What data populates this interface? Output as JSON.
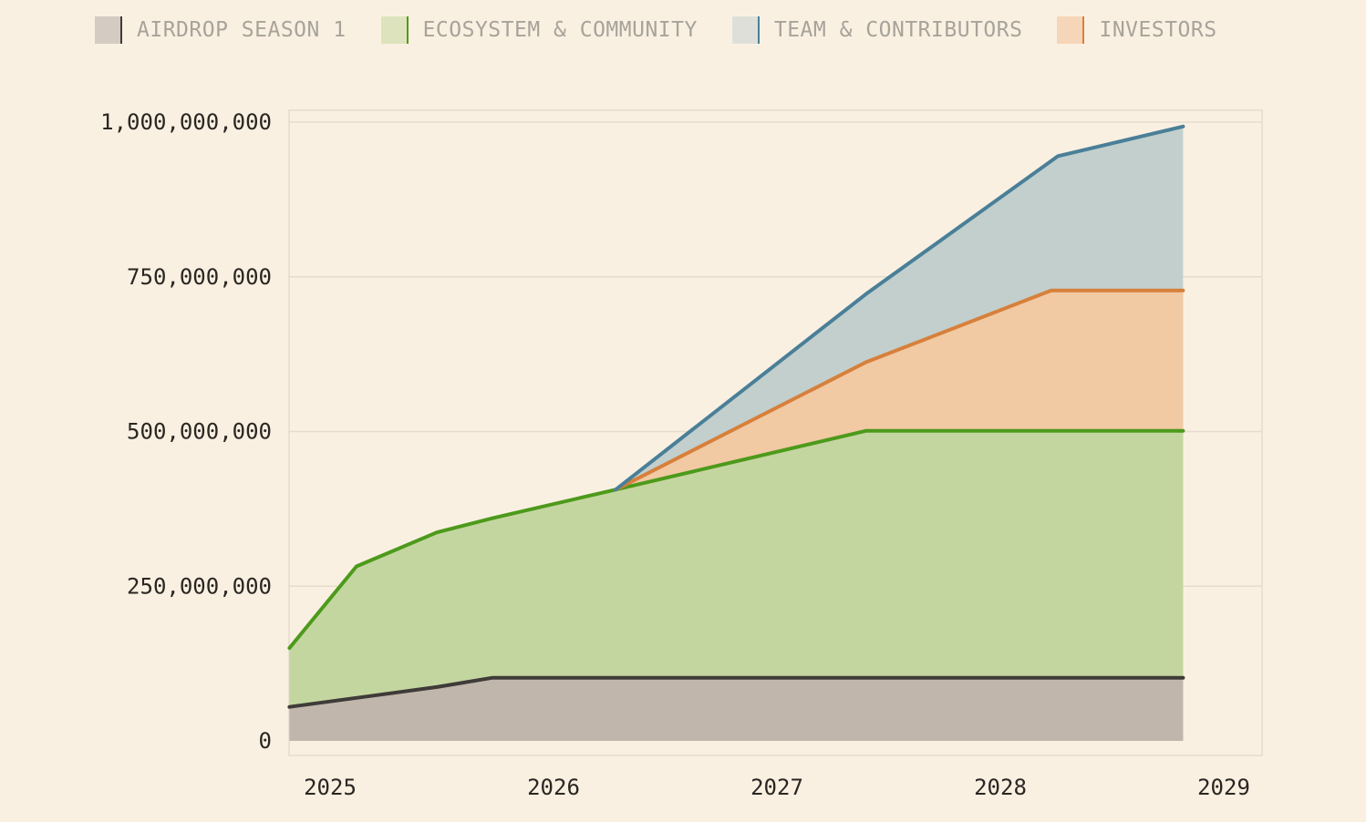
{
  "chart_data": {
    "type": "area",
    "stacked": true,
    "title": "",
    "xlabel": "",
    "ylabel": "",
    "xlim": [
      2025,
      2029
    ],
    "ylim": [
      0,
      1000000000
    ],
    "x_ticks": [
      2025,
      2026,
      2027,
      2028,
      2029
    ],
    "x_tick_labels": [
      "2025",
      "2026",
      "2027",
      "2028",
      "2029"
    ],
    "y_ticks": [
      0,
      250000000,
      500000000,
      750000000,
      1000000000
    ],
    "y_tick_labels": [
      "0",
      "250,000,000",
      "500,000,000",
      "750,000,000",
      "1,000,000,000"
    ],
    "grid": true,
    "legend_position": "top",
    "series": [
      {
        "name": "AIRDROP SEASON 1",
        "key": "airdrop",
        "line_color": "#3f3b38",
        "fill_color": "#c0b6ac",
        "swatch_color": "#d4cbc2",
        "points": [
          [
            2024.92,
            55000000
          ],
          [
            2025.25,
            71000000
          ],
          [
            2025.58,
            87000000
          ],
          [
            2025.83,
            102000000
          ],
          [
            2026.5,
            102000000
          ],
          [
            2027.5,
            102000000
          ],
          [
            2028.33,
            102000000
          ],
          [
            2028.92,
            102000000
          ]
        ]
      },
      {
        "name": "ECOSYSTEM & COMMUNITY",
        "key": "ecosystem",
        "line_color": "#4d9a1b",
        "fill_color": "#c4d6a0",
        "swatch_color": "#dde3bc",
        "points": [
          [
            2024.92,
            150000000
          ],
          [
            2025.22,
            282000000
          ],
          [
            2025.58,
            337000000
          ],
          [
            2025.83,
            360000000
          ],
          [
            2026.38,
            406000000
          ],
          [
            2027.5,
            501000000
          ],
          [
            2028.33,
            501000000
          ],
          [
            2028.92,
            501000000
          ]
        ]
      },
      {
        "name": "INVESTORS",
        "key": "investors",
        "line_color": "#d7803b",
        "fill_color": "#f1c9a3",
        "swatch_color": "#f6d6b8",
        "points": [
          [
            2026.38,
            406000000
          ],
          [
            2027.5,
            612000000
          ],
          [
            2028.33,
            728000000
          ],
          [
            2028.92,
            728000000
          ]
        ]
      },
      {
        "name": "TEAM & CONTRIBUTORS",
        "key": "team",
        "line_color": "#4a7f98",
        "fill_color": "#c2cfcd",
        "swatch_color": "#dfdfd9",
        "points": [
          [
            2026.38,
            406000000
          ],
          [
            2027.5,
            722000000
          ],
          [
            2028.36,
            945000000
          ],
          [
            2028.92,
            993000000
          ]
        ]
      }
    ],
    "legend_order": [
      "airdrop",
      "ecosystem",
      "team",
      "investors"
    ]
  }
}
